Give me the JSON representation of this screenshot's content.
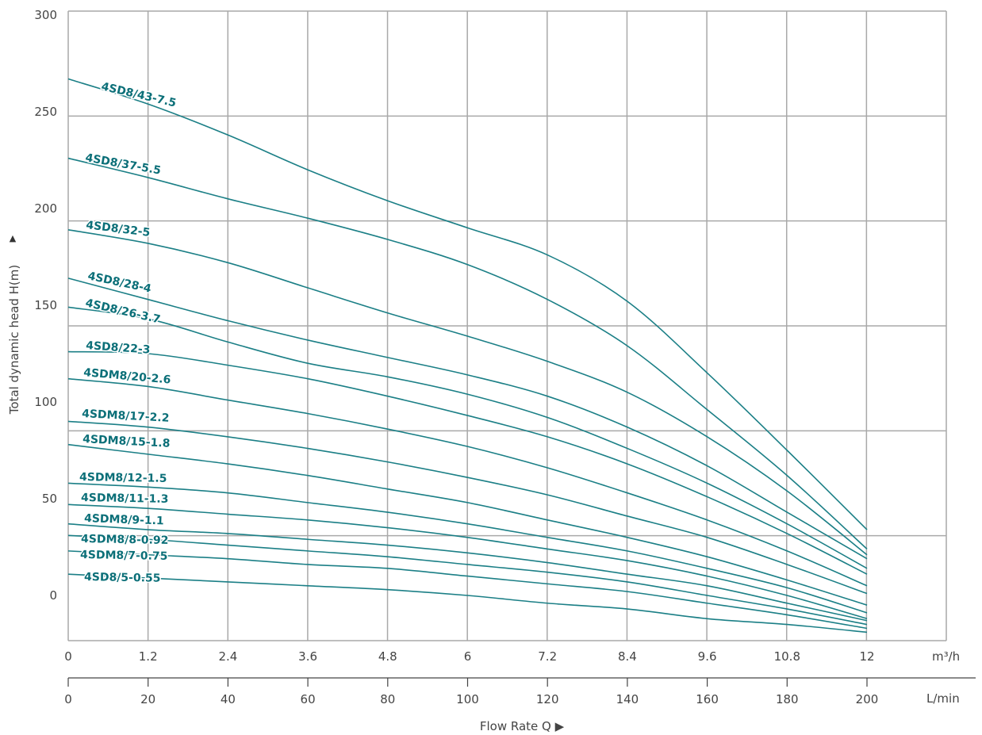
{
  "chart_data": {
    "type": "line",
    "title": "",
    "xlabel": "Flow Rate Q ▶",
    "ylabel": "Total dynamic head H(m)",
    "ylabel_arrow": "▲",
    "x_unit": "m³/h",
    "x2_unit": "L/min",
    "x_ticks": [
      "0",
      "1.2",
      "2.4",
      "3.6",
      "4.8",
      "6",
      "7.2",
      "8.4",
      "9.6",
      "10.8",
      "12"
    ],
    "x2_ticks": [
      "0",
      "20",
      "40",
      "60",
      "80",
      "100",
      "120",
      "140",
      "160",
      "180",
      "200"
    ],
    "y_ticks": [
      "300",
      "250",
      "200",
      "150",
      "100",
      "50",
      "0"
    ],
    "xlim": [
      0,
      13.2
    ],
    "ylim": [
      -23,
      302
    ],
    "grid": true,
    "line_color": "#1b7f86",
    "label_color": "#0b6f78",
    "x": [
      0,
      1.2,
      2.4,
      3.6,
      4.8,
      6,
      7.2,
      8.4,
      9.6,
      10.8,
      12
    ],
    "series": [
      {
        "name": "4SD8/43-7.5",
        "values": [
          267,
          254,
          238,
          220,
          204,
          190,
          176,
          152,
          115,
          75,
          34
        ]
      },
      {
        "name": "4SD8/37-5.5",
        "values": [
          226,
          216,
          205,
          195,
          184,
          171,
          153,
          129,
          96,
          62,
          24
        ]
      },
      {
        "name": "4SD8/32-5",
        "values": [
          189,
          182,
          172,
          159,
          146,
          134,
          121,
          105,
          82,
          54,
          21
        ]
      },
      {
        "name": "4SD8/28-4",
        "values": [
          164,
          153,
          142,
          132,
          123,
          114,
          103,
          87,
          67,
          43,
          19
        ]
      },
      {
        "name": "4SD8/26-3.7",
        "values": [
          149,
          143,
          131,
          120,
          113,
          104,
          92,
          76,
          58,
          37,
          14
        ]
      },
      {
        "name": "4SD8/22-3",
        "values": [
          126,
          125,
          119,
          112,
          103,
          93,
          82,
          68,
          51,
          32,
          11
        ]
      },
      {
        "name": "4SDM8/20-2.6",
        "values": [
          112,
          108,
          101,
          94,
          86,
          77,
          66,
          53,
          39,
          23,
          5
        ]
      },
      {
        "name": "4SDM8/17-2.2",
        "values": [
          90,
          87,
          82,
          76,
          69,
          61,
          52,
          41,
          30,
          16,
          1
        ]
      },
      {
        "name": "4SDM8/15-1.8",
        "values": [
          78,
          73,
          68,
          62,
          55,
          48,
          39,
          30,
          20,
          8,
          -5
        ]
      },
      {
        "name": "4SDM8/12-1.5",
        "values": [
          58,
          56,
          53,
          48,
          43,
          37,
          30,
          23,
          14,
          4,
          -9
        ]
      },
      {
        "name": "4SDM8/11-1.3",
        "values": [
          47,
          45,
          42,
          39,
          35,
          30,
          24,
          18,
          10,
          0,
          -12
        ]
      },
      {
        "name": "4SDM8/9-1.1",
        "values": [
          37,
          34,
          32,
          29,
          26,
          22,
          17,
          11,
          5,
          -4,
          -13
        ]
      },
      {
        "name": "4SDM8/8-0.92",
        "values": [
          31,
          29,
          26,
          23,
          20,
          16,
          12,
          7,
          0,
          -7,
          -15
        ]
      },
      {
        "name": "4SDM8/7-0.75",
        "values": [
          23,
          21,
          19,
          16,
          14,
          10,
          6,
          2,
          -4,
          -10,
          -17
        ]
      },
      {
        "name": "4SD8/5-0.55",
        "values": [
          11,
          9,
          7,
          5,
          3,
          0,
          -4,
          -7,
          -12,
          -15,
          -19
        ]
      }
    ]
  }
}
